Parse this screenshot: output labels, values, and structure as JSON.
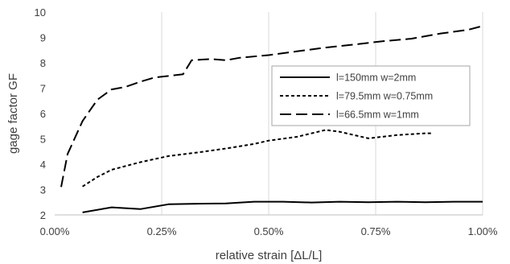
{
  "chart_data": {
    "type": "line",
    "title": "",
    "xlabel": "relative strain [ΔL/L]",
    "ylabel": "gage factor GF",
    "xlim": [
      0,
      1.0
    ],
    "ylim": [
      2,
      10
    ],
    "xticks": [
      {
        "value": 0,
        "label": "0.00%"
      },
      {
        "value": 0.25,
        "label": "0.25%"
      },
      {
        "value": 0.5,
        "label": "0.50%"
      },
      {
        "value": 0.75,
        "label": "0.75%"
      },
      {
        "value": 1.0,
        "label": "1.00%"
      }
    ],
    "yticks": [
      {
        "value": 2,
        "label": "2"
      },
      {
        "value": 3,
        "label": "3"
      },
      {
        "value": 4,
        "label": "4"
      },
      {
        "value": 5,
        "label": "5"
      },
      {
        "value": 6,
        "label": "6"
      },
      {
        "value": 7,
        "label": "7"
      },
      {
        "value": 8,
        "label": "8"
      },
      {
        "value": 9,
        "label": "9"
      },
      {
        "value": 10,
        "label": "10"
      }
    ],
    "grid": {
      "vertical": true,
      "horizontal": false,
      "color": "#d9d9d9"
    },
    "legend": {
      "position": "right-center"
    },
    "series": [
      {
        "name": "l=150mm w=2mm",
        "dash": "solid",
        "color": "#000000",
        "x": [
          0.065,
          0.133,
          0.2,
          0.266,
          0.333,
          0.4,
          0.466,
          0.533,
          0.6,
          0.666,
          0.733,
          0.8,
          0.866,
          0.933,
          1.0
        ],
        "y": [
          2.1,
          2.3,
          2.23,
          2.42,
          2.44,
          2.45,
          2.52,
          2.52,
          2.49,
          2.52,
          2.5,
          2.52,
          2.5,
          2.52,
          2.52
        ]
      },
      {
        "name": "l=79.5mm w=0.75mm",
        "dash": "short",
        "color": "#000000",
        "x": [
          0.065,
          0.1,
          0.133,
          0.2,
          0.266,
          0.333,
          0.4,
          0.466,
          0.5,
          0.566,
          0.633,
          0.666,
          0.733,
          0.8,
          0.866,
          0.88
        ],
        "y": [
          3.12,
          3.5,
          3.78,
          4.08,
          4.32,
          4.46,
          4.62,
          4.8,
          4.93,
          5.08,
          5.35,
          5.28,
          5.02,
          5.15,
          5.22,
          5.22
        ]
      },
      {
        "name": "l=66.5mm w=1mm",
        "dash": "long",
        "color": "#000000",
        "x": [
          0.015,
          0.03,
          0.065,
          0.1,
          0.133,
          0.166,
          0.2,
          0.233,
          0.266,
          0.3,
          0.32,
          0.366,
          0.4,
          0.433,
          0.5,
          0.566,
          0.633,
          0.7,
          0.766,
          0.833,
          0.9,
          0.966,
          1.0
        ],
        "y": [
          3.1,
          4.4,
          5.7,
          6.55,
          6.95,
          7.05,
          7.25,
          7.42,
          7.48,
          7.55,
          8.1,
          8.15,
          8.1,
          8.2,
          8.3,
          8.45,
          8.6,
          8.72,
          8.85,
          8.95,
          9.15,
          9.3,
          9.45
        ]
      }
    ]
  }
}
